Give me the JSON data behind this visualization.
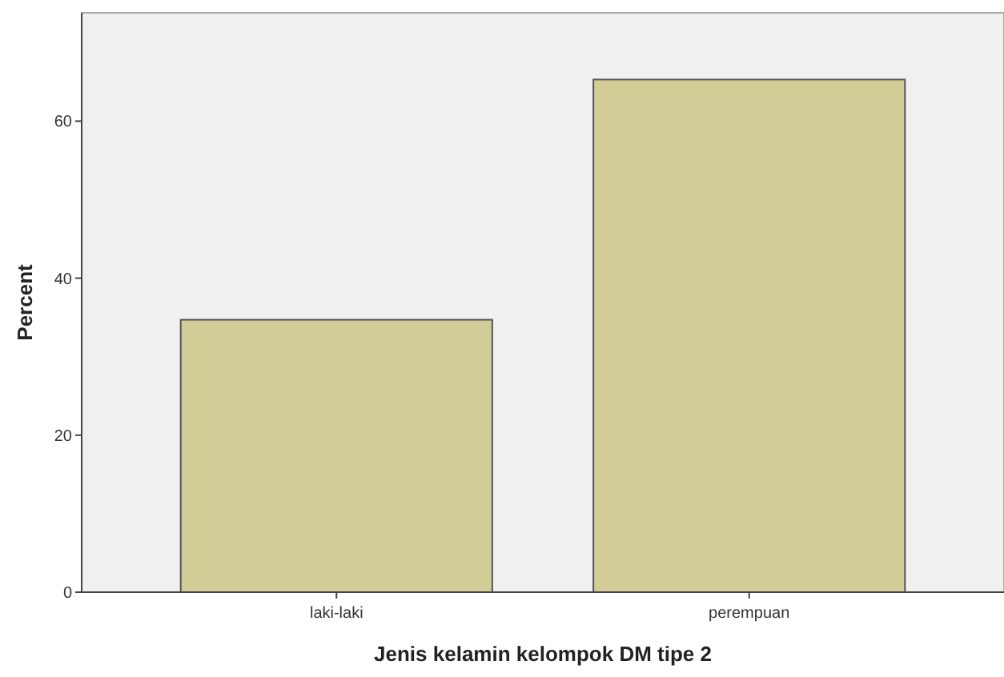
{
  "chart_data": {
    "type": "bar",
    "xlabel": "Jenis kelamin kelompok DM tipe 2",
    "ylabel": "Percent",
    "categories": [
      "laki-laki",
      "perempuan"
    ],
    "values": [
      34.7,
      65.3
    ],
    "color": "#d2cd96",
    "ylim": [
      0,
      73.8
    ],
    "yticks": [
      0,
      20,
      40,
      60
    ]
  }
}
